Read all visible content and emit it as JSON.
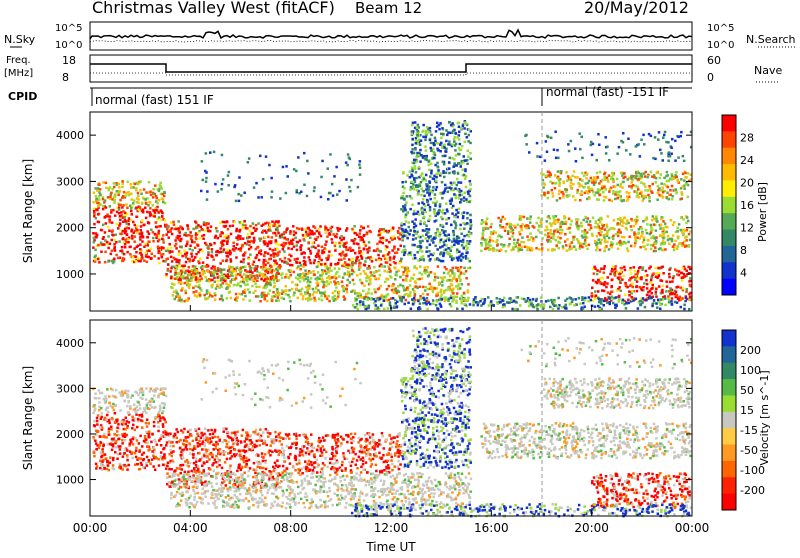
{
  "header": {
    "title": "Christmas Valley West (fitACF)",
    "beam": "Beam 12",
    "date": "20/May/2012"
  },
  "top_panel": {
    "left_label": "N.Sky",
    "right_label": "N.Search",
    "left_ticks": [
      "10^5",
      "10^0"
    ],
    "right_ticks": [
      "10^5",
      "10^0"
    ]
  },
  "freq_panel": {
    "left_label_1": "Freq.",
    "left_label_2": "[MHz]",
    "right_label": "Nave",
    "left_ticks": [
      "18",
      "8"
    ],
    "right_ticks": [
      "60",
      "0"
    ]
  },
  "cpid": {
    "label": "CPID",
    "segment_1": "normal (fast) 151 IF",
    "segment_2": "normal (fast) -151 IF"
  },
  "chart_data": [
    {
      "type": "heatmap",
      "panel": "power",
      "ylabel": "Slant Range [km]",
      "yticks": [
        "1000",
        "2000",
        "3000",
        "4000"
      ],
      "colorbar_label": "Power [dB]",
      "colorbar_ticks": [
        "28",
        "24",
        "20",
        "16",
        "12",
        "8",
        "4"
      ],
      "colorbar_colors": [
        "#ff0000",
        "#ff4400",
        "#ff8800",
        "#ffbb00",
        "#ffee00",
        "#99dd33",
        "#55aa55",
        "#338866",
        "#226699",
        "#1133cc",
        "#0000ff"
      ]
    },
    {
      "type": "heatmap",
      "panel": "velocity",
      "ylabel": "Slant Range [km]",
      "yticks": [
        "1000",
        "2000",
        "3000",
        "4000"
      ],
      "colorbar_label": "Velocity [m s^-1]",
      "colorbar_ticks": [
        "200",
        "100",
        "50",
        "15",
        "-15",
        "-50",
        "-100",
        "-200"
      ],
      "colorbar_colors": [
        "#1133cc",
        "#226699",
        "#338866",
        "#55bb44",
        "#99dd33",
        "#c8c8c0",
        "#ffcc44",
        "#ff9922",
        "#ff6600",
        "#ff2200",
        "#ff0000"
      ]
    }
  ],
  "time_axis": {
    "label": "Time UT",
    "ticks": [
      "00:00",
      "04:00",
      "08:00",
      "12:00",
      "16:00",
      "20:00",
      "00:00"
    ]
  }
}
